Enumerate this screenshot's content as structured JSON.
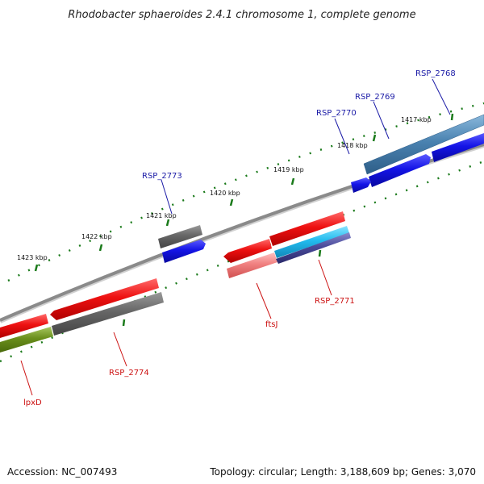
{
  "title": "Rhodobacter sphaeroides 2.4.1 chromosome 1, complete genome",
  "footer": {
    "accession": "Accession: NC_007493",
    "summary": "Topology: circular; Length: 3,188,609 bp; Genes: 3,070"
  },
  "ticks": [
    "1417 kbp",
    "1418 kbp",
    "1419 kbp",
    "1420 kbp",
    "1421 kbp",
    "1422 kbp",
    "1423 kbp"
  ],
  "genes": {
    "rsp2768": "RSP_2768",
    "rsp2769": "RSP_2769",
    "rsp2770": "RSP_2770",
    "rsp2771": "RSP_2771",
    "rsp2773": "RSP_2773",
    "rsp2774": "RSP_2774",
    "ftsJ": "ftsJ",
    "lpxD": "lpxD"
  },
  "colors": {
    "backbone": "#8a8a8a",
    "tick": "#1a7a1a",
    "forward_label": "#1a1aa6",
    "reverse_label": "#cc1111",
    "red": "#ee1111",
    "pink": "#f08080",
    "grey": "#666666",
    "blue": "#1414e6",
    "steel": "#4a82b0",
    "cyan": "#22bbee",
    "navy": "#4a4a9a",
    "olive": "#6a8f1c"
  }
}
